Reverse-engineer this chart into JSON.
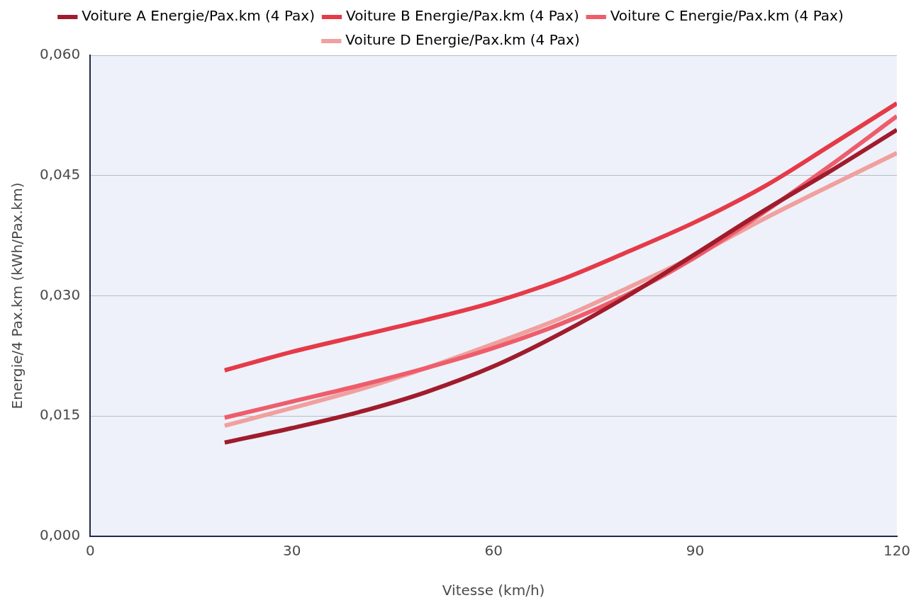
{
  "chart_data": {
    "type": "line",
    "xlabel": "Vitesse (km/h)",
    "ylabel": "Energie/4 Pax.km (kWh/Pax.km)",
    "x": [
      20,
      30,
      40,
      50,
      60,
      70,
      80,
      90,
      100,
      110,
      120
    ],
    "series": [
      {
        "name": "Voiture A Energie/Pax.km (4 Pax)",
        "color": "#a01c2c",
        "values": [
          0.0117,
          0.0135,
          0.0155,
          0.018,
          0.0212,
          0.0253,
          0.03,
          0.0352,
          0.0405,
          0.0455,
          0.0507
        ]
      },
      {
        "name": "Voiture B Energie/Pax.km (4 Pax)",
        "color": "#e53a48",
        "values": [
          0.0207,
          0.023,
          0.025,
          0.027,
          0.0292,
          0.032,
          0.0355,
          0.0392,
          0.0435,
          0.0487,
          0.054
        ]
      },
      {
        "name": "Voiture C Energie/Pax.km (4 Pax)",
        "color": "#ee5d6c",
        "values": [
          0.0148,
          0.0168,
          0.0188,
          0.021,
          0.0235,
          0.0265,
          0.0302,
          0.0348,
          0.0403,
          0.0462,
          0.0524
        ]
      },
      {
        "name": "Voiture D Energie/Pax.km (4 Pax)",
        "color": "#f0a09e",
        "values": [
          0.0138,
          0.016,
          0.0183,
          0.021,
          0.024,
          0.0272,
          0.031,
          0.035,
          0.0395,
          0.0437,
          0.0478
        ]
      }
    ],
    "xlim": [
      0,
      120
    ],
    "xticks": [
      0,
      30,
      60,
      90,
      120
    ],
    "ylim": [
      0,
      0.06
    ],
    "yticks": [
      {
        "value": 0,
        "label": "0,000"
      },
      {
        "value": 0.015,
        "label": "0,015"
      },
      {
        "value": 0.03,
        "label": "0,030"
      },
      {
        "value": 0.045,
        "label": "0,045"
      },
      {
        "value": 0.06,
        "label": "0,060"
      }
    ],
    "grid": "y",
    "legend": "top",
    "marker": "none",
    "line_style": "solid"
  }
}
